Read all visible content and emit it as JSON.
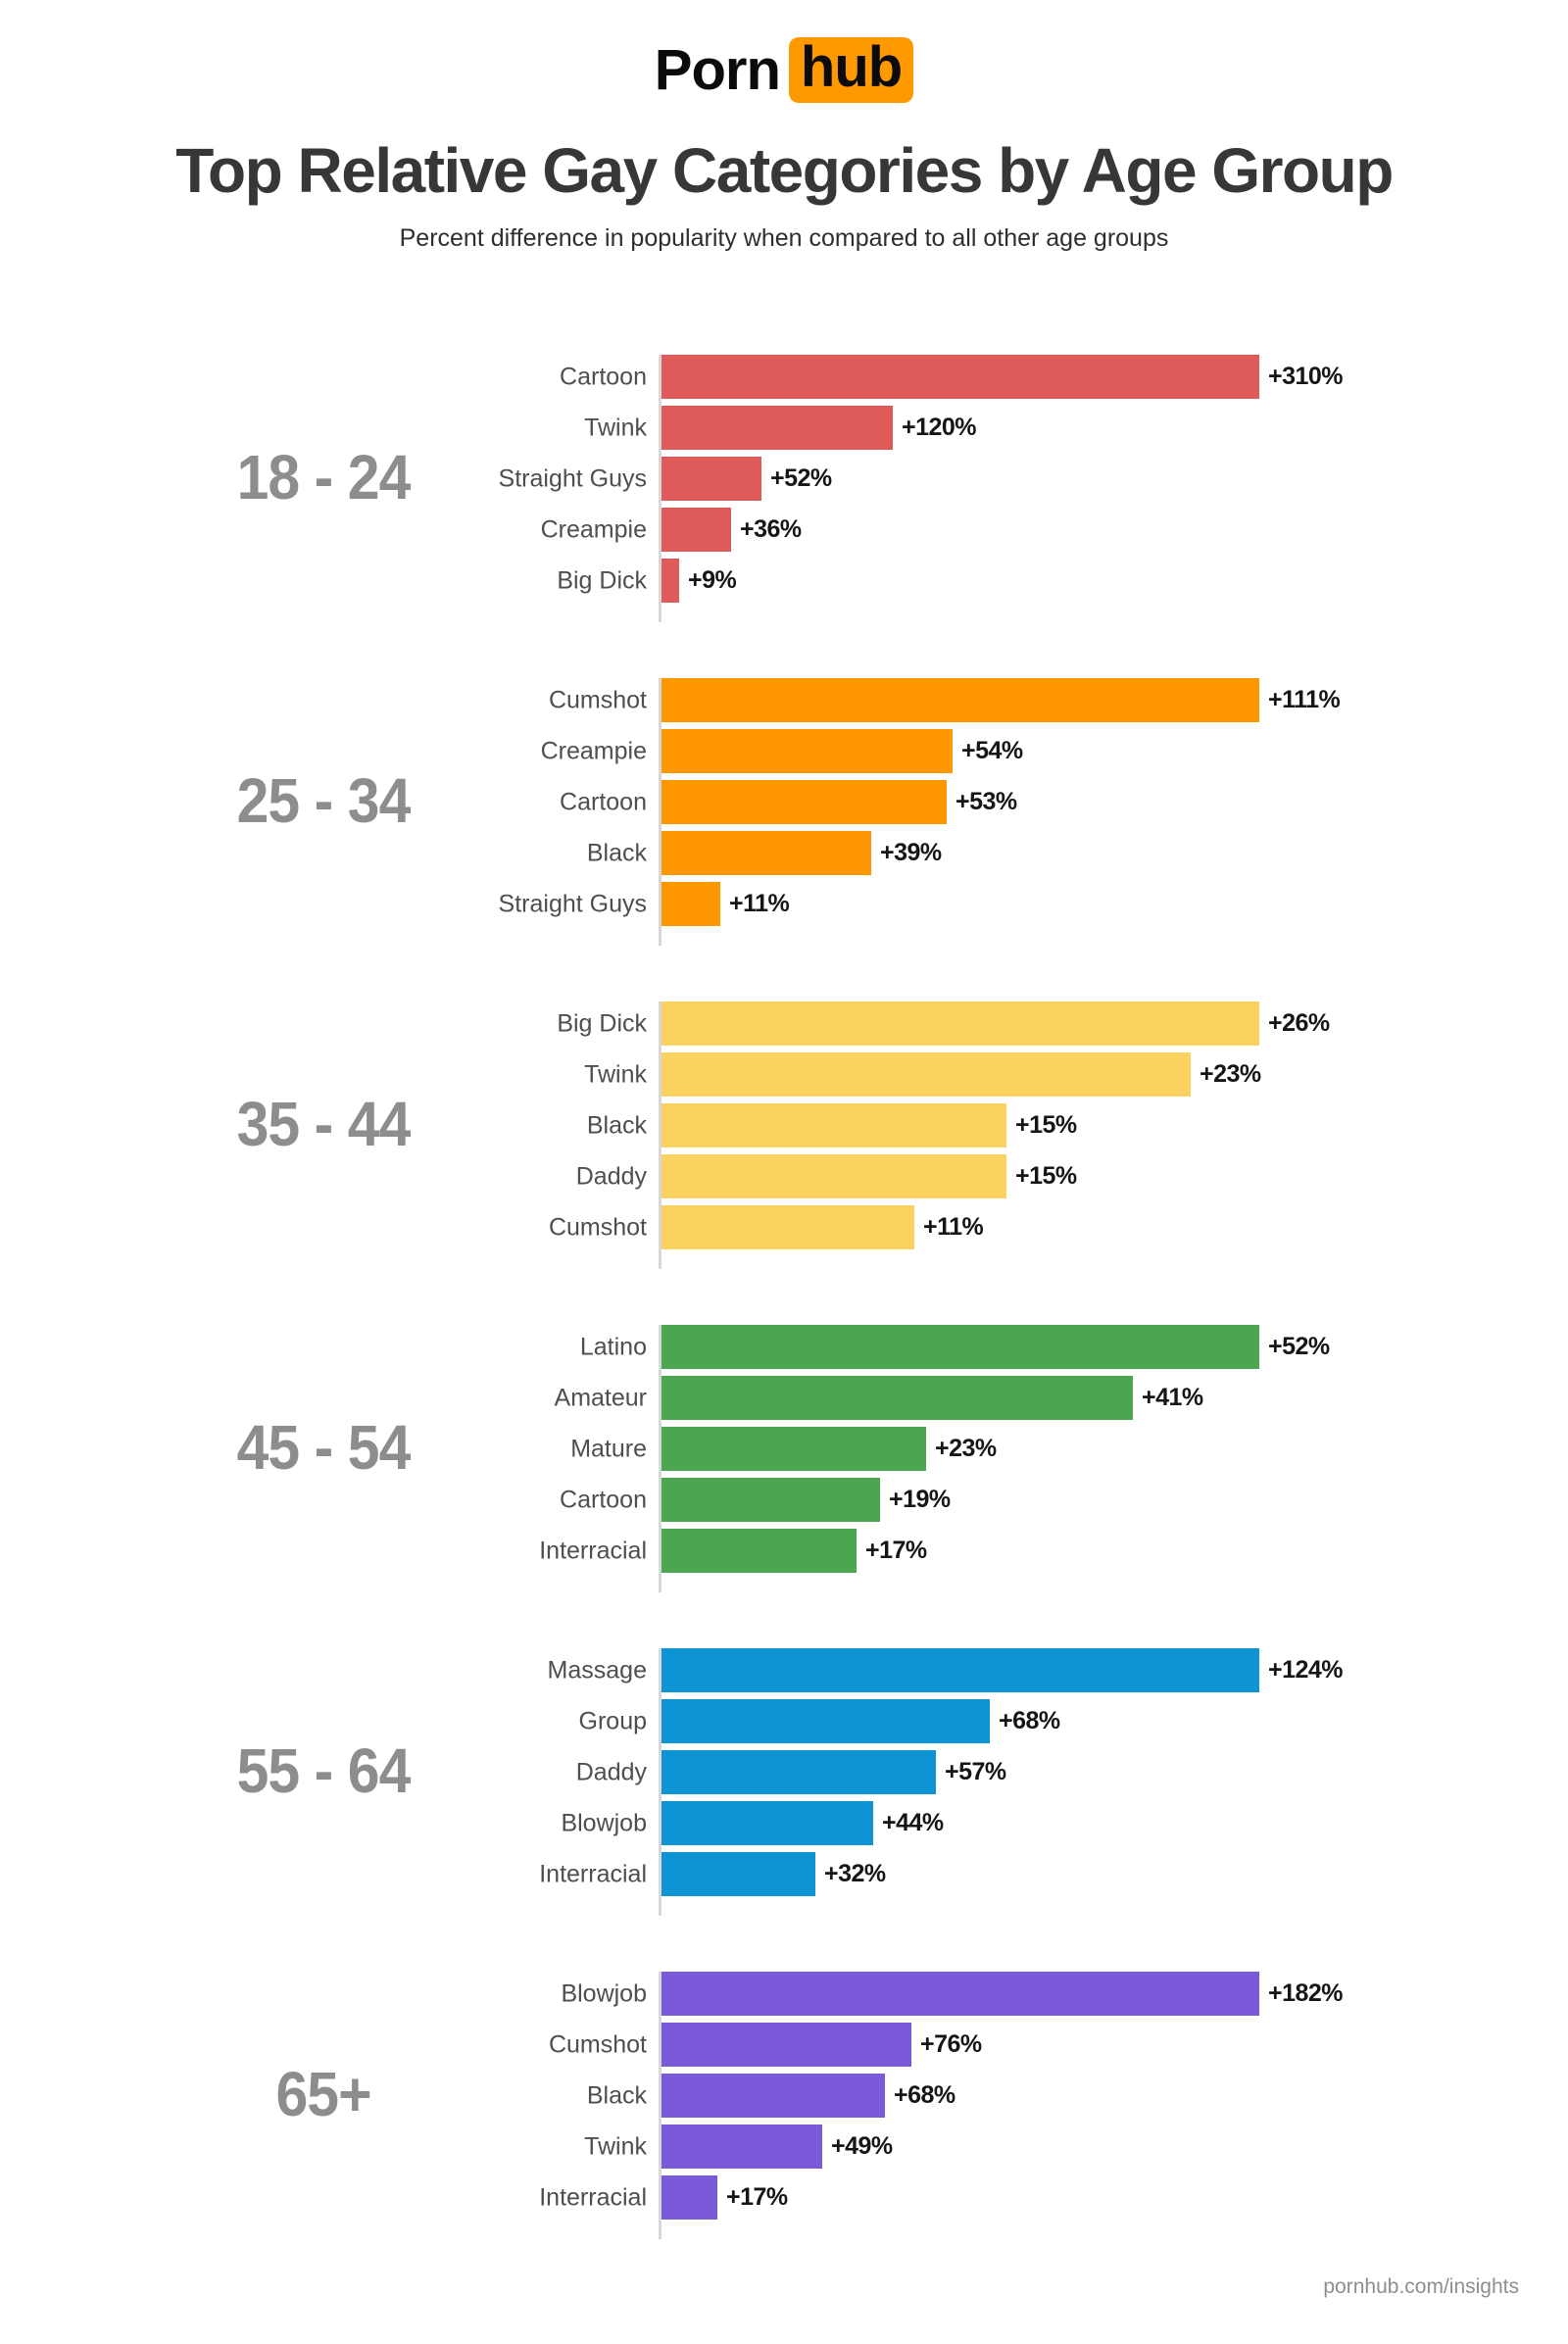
{
  "logo": {
    "part1": "Porn",
    "part2": "hub",
    "accent_color": "#FF9900"
  },
  "header": {
    "title": "Top Relative Gay Categories by Age Group",
    "subtitle": "Percent difference in popularity when compared to all other age groups"
  },
  "footer": {
    "link": "pornhub.com/insights"
  },
  "chart_data": {
    "type": "bar",
    "orientation": "horizontal",
    "value_suffix": "%",
    "bars_scaled_within_each_group": true,
    "groups": [
      {
        "age": "18 - 24",
        "color": "#DF5B5A",
        "categories": [
          "Cartoon",
          "Twink",
          "Straight Guys",
          "Creampie",
          "Big Dick"
        ],
        "values": [
          310,
          120,
          52,
          36,
          9
        ],
        "items": [
          {
            "label": "Cartoon",
            "value": 310,
            "display": "+310%"
          },
          {
            "label": "Twink",
            "value": 120,
            "display": "+120%"
          },
          {
            "label": "Straight Guys",
            "value": 52,
            "display": "+52%"
          },
          {
            "label": "Creampie",
            "value": 36,
            "display": "+36%"
          },
          {
            "label": "Big Dick",
            "value": 9,
            "display": "+9%"
          }
        ]
      },
      {
        "age": "25 - 34",
        "color": "#FF9800",
        "categories": [
          "Cumshot",
          "Creampie",
          "Cartoon",
          "Black",
          "Straight Guys"
        ],
        "values": [
          111,
          54,
          53,
          39,
          11
        ],
        "items": [
          {
            "label": "Cumshot",
            "value": 111,
            "display": "+111%"
          },
          {
            "label": "Creampie",
            "value": 54,
            "display": "+54%"
          },
          {
            "label": "Cartoon",
            "value": 53,
            "display": "+53%"
          },
          {
            "label": "Black",
            "value": 39,
            "display": "+39%"
          },
          {
            "label": "Straight Guys",
            "value": 11,
            "display": "+11%"
          }
        ]
      },
      {
        "age": "35 - 44",
        "color": "#FBD25F",
        "categories": [
          "Big Dick",
          "Twink",
          "Black",
          "Daddy",
          "Cumshot"
        ],
        "values": [
          26,
          23,
          15,
          15,
          11
        ],
        "items": [
          {
            "label": "Big Dick",
            "value": 26,
            "display": "+26%"
          },
          {
            "label": "Twink",
            "value": 23,
            "display": "+23%"
          },
          {
            "label": "Black",
            "value": 15,
            "display": "+15%"
          },
          {
            "label": "Daddy",
            "value": 15,
            "display": "+15%"
          },
          {
            "label": "Cumshot",
            "value": 11,
            "display": "+11%"
          }
        ]
      },
      {
        "age": "45 - 54",
        "color": "#4CA64F",
        "categories": [
          "Latino",
          "Amateur",
          "Mature",
          "Cartoon",
          "Interracial"
        ],
        "values": [
          52,
          41,
          23,
          19,
          17
        ],
        "items": [
          {
            "label": "Latino",
            "value": 52,
            "display": "+52%"
          },
          {
            "label": "Amateur",
            "value": 41,
            "display": "+41%"
          },
          {
            "label": "Mature",
            "value": 23,
            "display": "+23%"
          },
          {
            "label": "Cartoon",
            "value": 19,
            "display": "+19%"
          },
          {
            "label": "Interracial",
            "value": 17,
            "display": "+17%"
          }
        ]
      },
      {
        "age": "55 - 64",
        "color": "#0E93D4",
        "categories": [
          "Massage",
          "Group",
          "Daddy",
          "Blowjob",
          "Interracial"
        ],
        "values": [
          124,
          68,
          57,
          44,
          32
        ],
        "items": [
          {
            "label": "Massage",
            "value": 124,
            "display": "+124%"
          },
          {
            "label": "Group",
            "value": 68,
            "display": "+68%"
          },
          {
            "label": "Daddy",
            "value": 57,
            "display": "+57%"
          },
          {
            "label": "Blowjob",
            "value": 44,
            "display": "+44%"
          },
          {
            "label": "Interracial",
            "value": 32,
            "display": "+32%"
          }
        ]
      },
      {
        "age": "65+",
        "color": "#7A5AD8",
        "categories": [
          "Blowjob",
          "Cumshot",
          "Black",
          "Twink",
          "Interracial"
        ],
        "values": [
          182,
          76,
          68,
          49,
          17
        ],
        "items": [
          {
            "label": "Blowjob",
            "value": 182,
            "display": "+182%"
          },
          {
            "label": "Cumshot",
            "value": 76,
            "display": "+76%"
          },
          {
            "label": "Black",
            "value": 68,
            "display": "+68%"
          },
          {
            "label": "Twink",
            "value": 49,
            "display": "+49%"
          },
          {
            "label": "Interracial",
            "value": 17,
            "display": "+17%"
          }
        ]
      }
    ]
  }
}
